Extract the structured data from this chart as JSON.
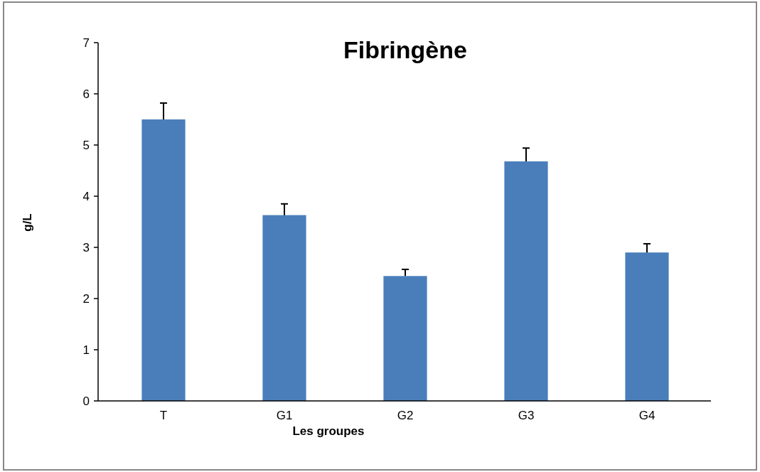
{
  "chart_data": {
    "type": "bar",
    "title": "Fibringène",
    "xlabel": "Les groupes",
    "ylabel": "g/L",
    "categories": [
      "T",
      "G1",
      "G2",
      "G3",
      "G4"
    ],
    "values": [
      5.5,
      3.63,
      2.44,
      4.68,
      2.9
    ],
    "errors": [
      [
        5.5,
        5.82
      ],
      [
        3.63,
        3.85
      ],
      [
        2.44,
        2.57
      ],
      [
        4.68,
        4.94
      ],
      [
        2.9,
        3.07
      ]
    ],
    "color": "#4a7ebb",
    "ylim": [
      0,
      7
    ],
    "yticks": [
      0,
      1,
      2,
      3,
      4,
      5,
      6,
      7
    ],
    "grid": false
  }
}
